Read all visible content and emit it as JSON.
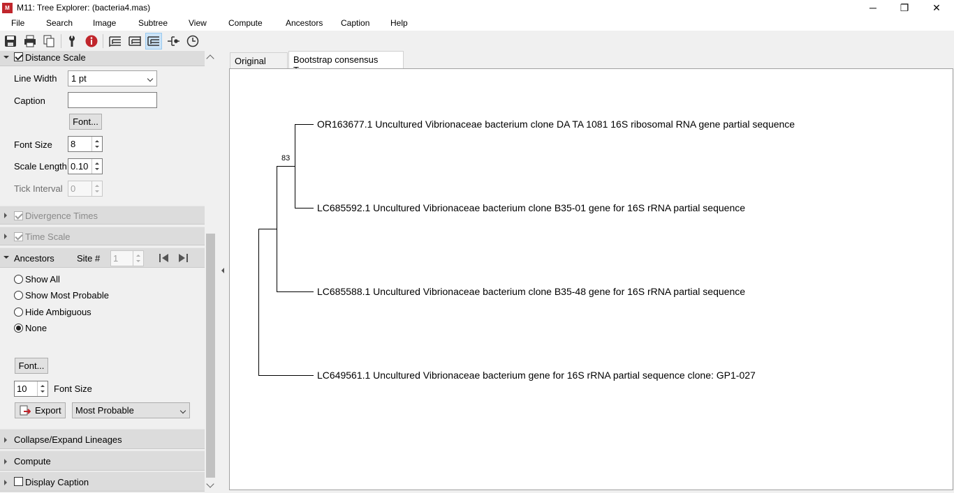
{
  "window": {
    "title": "M11: Tree Explorer: (bacteria4.mas)",
    "icon_text": "M",
    "controls": {
      "minimize": "─",
      "maximize": "❐",
      "close": "✕"
    }
  },
  "menu": [
    "File",
    "Search",
    "Image",
    "Subtree",
    "View",
    "Compute",
    "Ancestors",
    "Caption",
    "Help"
  ],
  "toolbar": {
    "icons": [
      "save-icon",
      "print-icon",
      "copy-icon",
      "options-icon",
      "info-icon",
      "tree-root-icon",
      "tree-flip-icon",
      "tree-active-icon",
      "tree-branch-icon",
      "clock-icon"
    ]
  },
  "left_panel": {
    "distance_scale": {
      "header": "Distance Scale",
      "checked": true,
      "line_width_label": "Line Width",
      "line_width_value": "1 pt",
      "caption_label": "Caption",
      "caption_value": "",
      "font_button": "Font...",
      "font_size_label": "Font Size",
      "font_size_value": "8",
      "scale_length_label": "Scale Length",
      "scale_length_value": "0.10",
      "tick_interval_label": "Tick Interval",
      "tick_interval_value": "0"
    },
    "divergence_times": {
      "header": "Divergence Times",
      "checked": true
    },
    "time_scale": {
      "header": "Time Scale",
      "checked": true
    },
    "ancestors": {
      "header": "Ancestors",
      "site_label": "Site #",
      "site_value": "1",
      "options": [
        "Show All",
        "Show Most Probable",
        "Hide Ambiguous",
        "None"
      ],
      "selected": "None",
      "font_button": "Font...",
      "font_size_value": "10",
      "font_size_label": "Font Size",
      "export_button": "Export",
      "export_mode": "Most Probable"
    },
    "collapse": {
      "header": "Collapse/Expand Lineages"
    },
    "compute": {
      "header": "Compute"
    },
    "display_caption": {
      "header": "Display Caption",
      "checked": false
    }
  },
  "tabs": [
    "Original Tree",
    "Bootstrap consensus Tree"
  ],
  "active_tab": "Bootstrap consensus Tree",
  "tree": {
    "bootstrap_value": "83",
    "taxa": [
      "OR163677.1 Uncultured Vibrionaceae bacterium clone DA TA 1081 16S ribosomal RNA gene partial sequence",
      "LC685592.1 Uncultured Vibrionaceae bacterium clone B35-01 gene for 16S rRNA partial sequence",
      "LC685588.1 Uncultured Vibrionaceae bacterium clone B35-48 gene for 16S rRNA partial sequence",
      "LC649561.1 Uncultured Vibrionaceae bacterium gene for 16S rRNA partial sequence clone: GP1-027"
    ]
  }
}
